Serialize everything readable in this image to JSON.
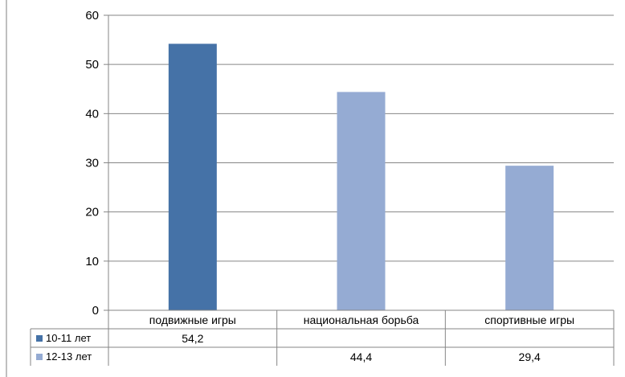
{
  "chart_data": {
    "type": "bar",
    "categories": [
      "подвижные игры",
      "национальная борьба",
      "спортивные игры"
    ],
    "series": [
      {
        "name": "10-11 лет",
        "color": "#4572A7",
        "values": [
          54.2,
          null,
          null
        ],
        "labels": [
          "54,2",
          "",
          ""
        ]
      },
      {
        "name": "12-13 лет",
        "color": "#95ABD3",
        "values": [
          null,
          44.4,
          29.4
        ],
        "labels": [
          "",
          "44,4",
          "29,4"
        ]
      }
    ],
    "ylim": [
      0,
      60
    ],
    "yticks": [
      "0",
      "10",
      "20",
      "30",
      "40",
      "50",
      "60"
    ],
    "grid": true,
    "legend": "data-table",
    "title": "",
    "xlabel": "",
    "ylabel": ""
  }
}
